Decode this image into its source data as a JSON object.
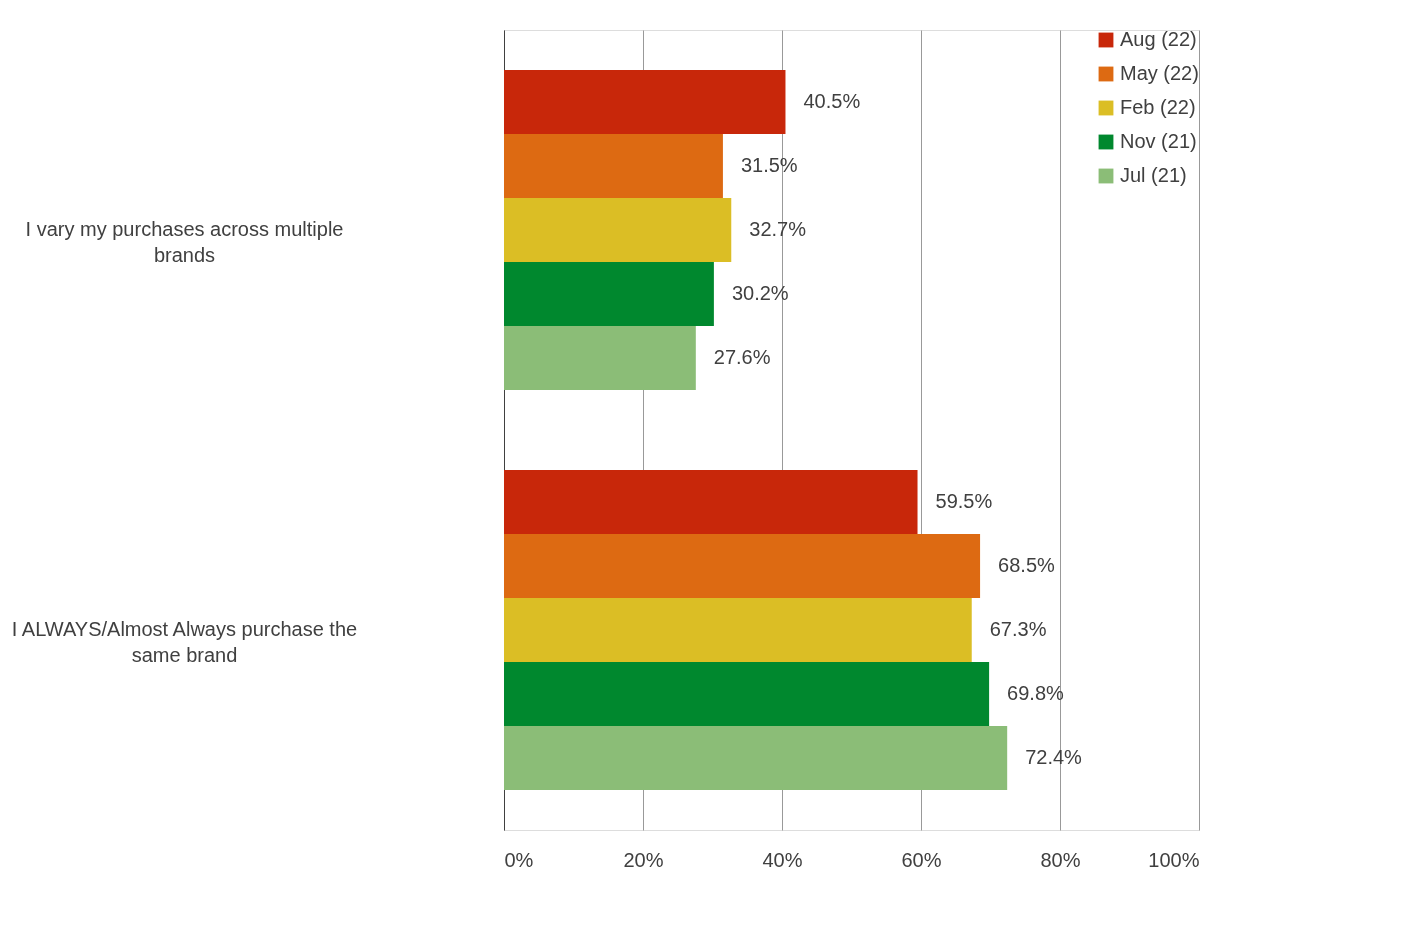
{
  "chart_data": {
    "type": "bar",
    "orientation": "horizontal",
    "categories": [
      "I vary my purchases across multiple brands",
      "I ALWAYS/Almost Always purchase the same brand"
    ],
    "series": [
      {
        "name": "Aug (22)",
        "color": "#c8270a",
        "values": [
          40.5,
          59.5
        ],
        "value_labels": [
          "40.5%",
          "59.5%"
        ]
      },
      {
        "name": "May (22)",
        "color": "#dd6a12",
        "values": [
          31.5,
          68.5
        ],
        "value_labels": [
          "31.5%",
          "68.5%"
        ]
      },
      {
        "name": "Feb (22)",
        "color": "#dbbe25",
        "values": [
          32.7,
          67.3
        ],
        "value_labels": [
          "32.7%",
          "67.3%"
        ]
      },
      {
        "name": "Nov (21)",
        "color": "#00882e",
        "values": [
          30.2,
          69.8
        ],
        "value_labels": [
          "30.2%",
          "69.8%"
        ]
      },
      {
        "name": "Jul (21)",
        "color": "#8bbd77",
        "values": [
          27.6,
          72.4
        ],
        "value_labels": [
          "27.6%",
          "72.4%"
        ]
      }
    ],
    "xlim": [
      0,
      100
    ],
    "xticks": [
      {
        "value": 0,
        "label": "0%"
      },
      {
        "value": 20,
        "label": "20%"
      },
      {
        "value": 40,
        "label": "40%"
      },
      {
        "value": 60,
        "label": "60%"
      },
      {
        "value": 80,
        "label": "80%"
      },
      {
        "value": 100,
        "label": "100%"
      }
    ],
    "grid": "x",
    "legend": "top right"
  }
}
